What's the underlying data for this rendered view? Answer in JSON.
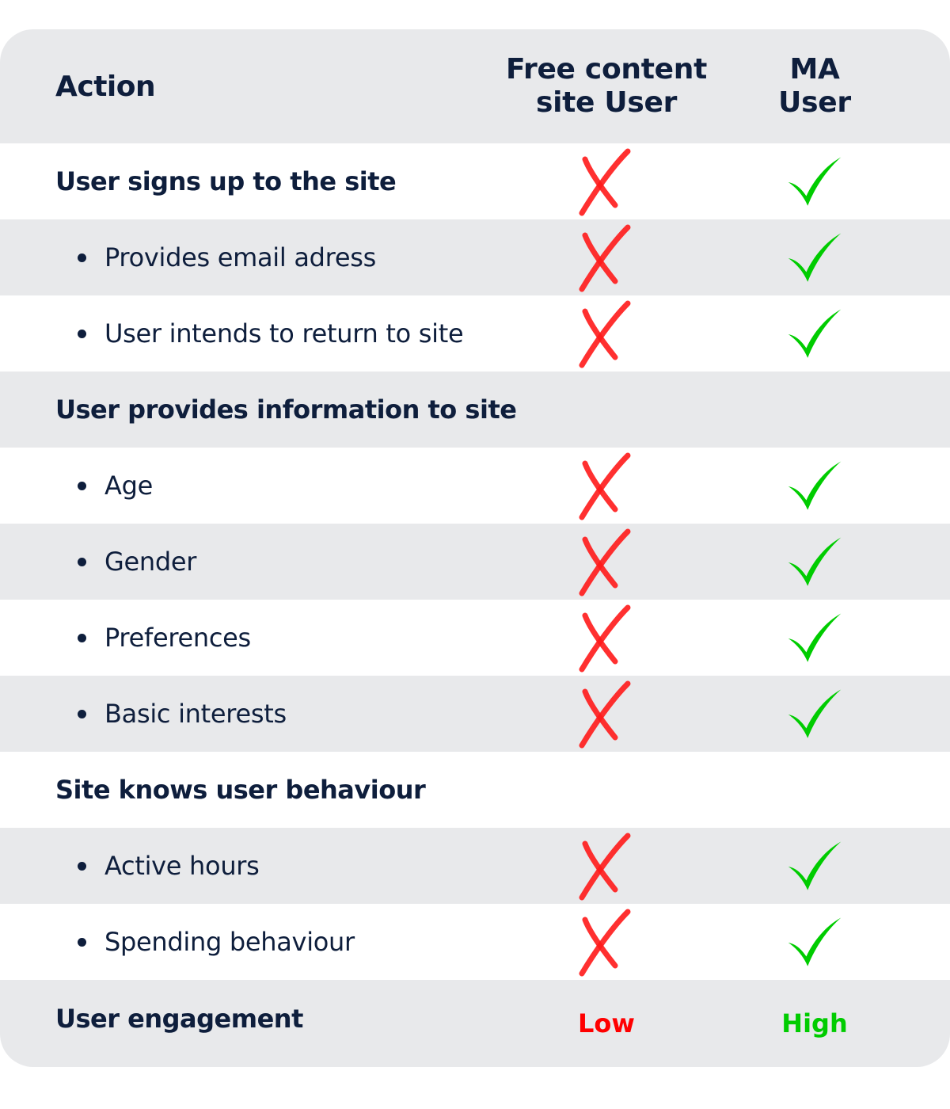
{
  "header": {
    "action": "Action",
    "free_user": "Free content site User",
    "ma_user": "MA User"
  },
  "rows": [
    {
      "label": "User signs up to the site",
      "type": "section",
      "free": "cross",
      "ma": "check"
    },
    {
      "label": "Provides email adress",
      "type": "bullet",
      "free": "cross",
      "ma": "check"
    },
    {
      "label": "User intends to return to site",
      "type": "bullet",
      "free": "cross",
      "ma": "check"
    },
    {
      "label": "User provides information to site",
      "type": "section"
    },
    {
      "label": "Age",
      "type": "bullet",
      "free": "cross",
      "ma": "check"
    },
    {
      "label": "Gender",
      "type": "bullet",
      "free": "cross",
      "ma": "check"
    },
    {
      "label": "Preferences",
      "type": "bullet",
      "free": "cross",
      "ma": "check"
    },
    {
      "label": "Basic interests",
      "type": "bullet",
      "free": "cross",
      "ma": "check"
    },
    {
      "label": "Site knows user behaviour",
      "type": "section"
    },
    {
      "label": "Active hours",
      "type": "bullet",
      "free": "cross",
      "ma": "check"
    },
    {
      "label": "Spending behaviour",
      "type": "bullet",
      "free": "cross",
      "ma": "check"
    }
  ],
  "footer": {
    "label": "User engagement",
    "free_value": "Low",
    "ma_value": "High"
  },
  "colors": {
    "text": "#0e1e3c",
    "row_alt": "#e8e9eb",
    "cross": "#ff1a1a",
    "check": "#00cc00",
    "low": "#ff0000",
    "high": "#00cc00"
  }
}
